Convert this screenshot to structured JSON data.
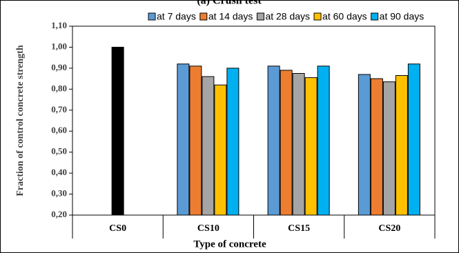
{
  "chart_data": {
    "type": "bar",
    "title": "(a) Crush test",
    "x_label": "Type of concrete",
    "y_label": "Fraction of control concrete  strength",
    "categories": [
      "CS0",
      "CS10",
      "CS15",
      "CS20"
    ],
    "reference": {
      "value": 1.0,
      "color": "#000000"
    },
    "series": [
      {
        "name": "at 7 days",
        "color": "#5b9bd5",
        "values": [
          null,
          0.92,
          0.91,
          0.87
        ]
      },
      {
        "name": "at 14 days",
        "color": "#ed7d31",
        "values": [
          null,
          0.91,
          0.89,
          0.85
        ]
      },
      {
        "name": "at 28 days",
        "color": "#a5a5a5",
        "values": [
          null,
          0.86,
          0.875,
          0.835
        ]
      },
      {
        "name": "at 60 days",
        "color": "#ffc000",
        "values": [
          null,
          0.82,
          0.855,
          0.865
        ]
      },
      {
        "name": "at 90 days",
        "color": "#00b0f0",
        "values": [
          null,
          0.9,
          0.91,
          0.92
        ]
      }
    ],
    "ylim": [
      0.2,
      1.1
    ],
    "yticks": [
      {
        "value": 0.2,
        "label": "0,20"
      },
      {
        "value": 0.3,
        "label": "0,30"
      },
      {
        "value": 0.4,
        "label": "0,40"
      },
      {
        "value": 0.5,
        "label": "0,50"
      },
      {
        "value": 0.6,
        "label": "0,60"
      },
      {
        "value": 0.7,
        "label": "0,70"
      },
      {
        "value": 0.8,
        "label": "0,80"
      },
      {
        "value": 0.9,
        "label": "0,90"
      },
      {
        "value": 1.0,
        "label": "1,00"
      },
      {
        "value": 1.1,
        "label": "1,10"
      }
    ],
    "grid": false,
    "legend": "top"
  }
}
